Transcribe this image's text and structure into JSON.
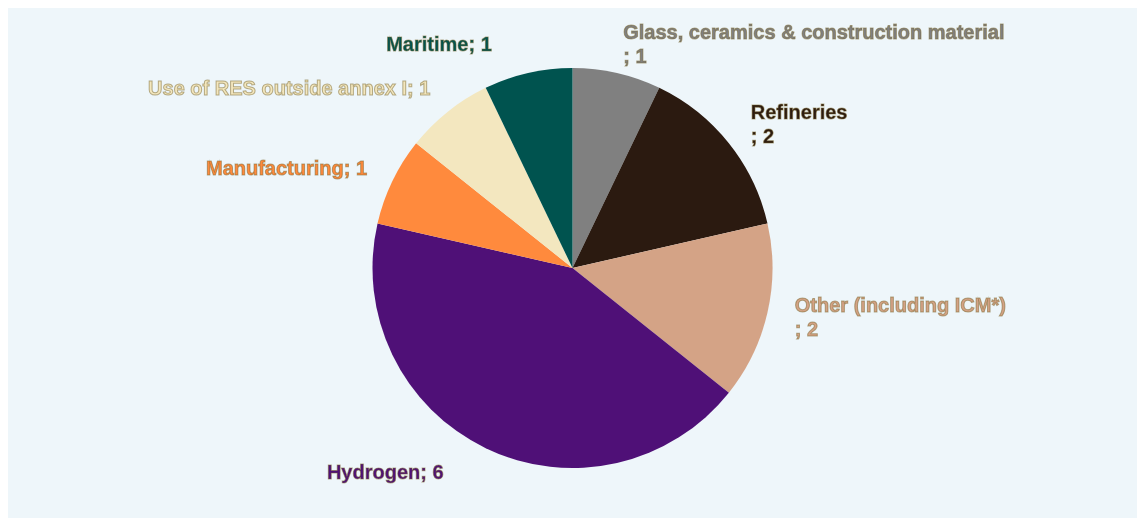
{
  "chart_data": {
    "type": "pie",
    "categories": [
      "Glass, ceramics & construction material",
      "Refineries",
      "Other (including ICM*)",
      "Hydrogen",
      "Manufacturing",
      "Use of RES outside annex I",
      "Maritime"
    ],
    "values": [
      1,
      2,
      2,
      6,
      1,
      1,
      1
    ],
    "colors": [
      "#808080",
      "#2b1a10",
      "#d4a386",
      "#4f1077",
      "#ff8a3d",
      "#f3e7bf",
      "#00534f"
    ],
    "value_labels": [
      "; 1",
      "; 2",
      "; 2",
      "; 6",
      "; 1",
      "; 1",
      "; 1"
    ]
  }
}
